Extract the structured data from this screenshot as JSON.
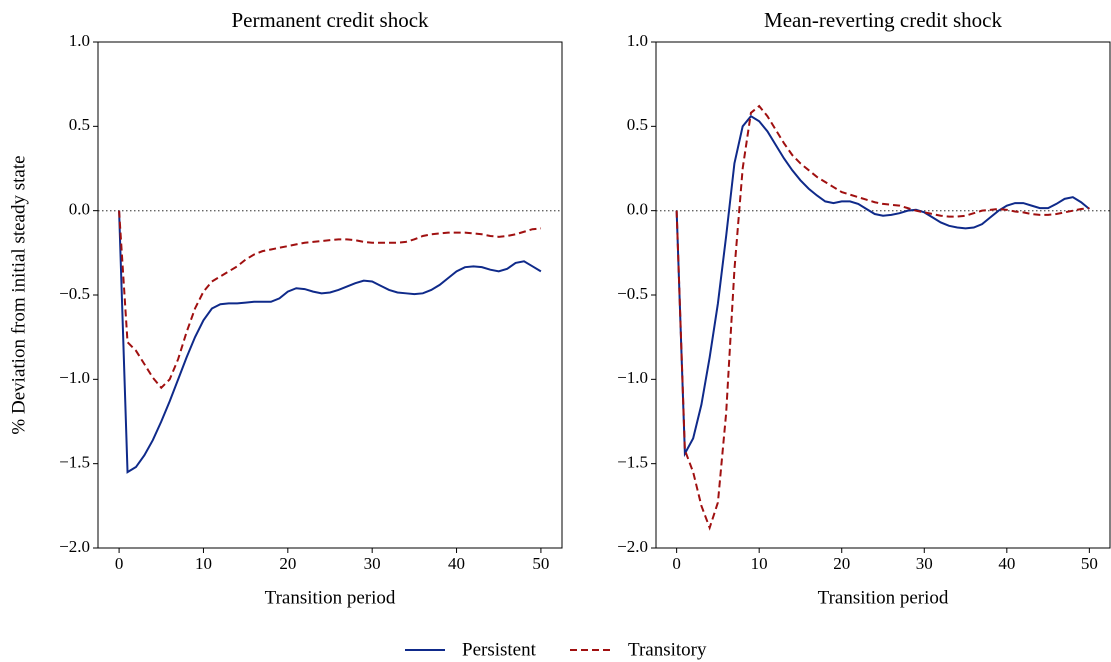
{
  "chart_data": [
    {
      "type": "line",
      "title": "Permanent credit shock",
      "xlabel": "Transition period",
      "ylabel": "% Deviation from initial steady state",
      "x": [
        0,
        1,
        2,
        3,
        4,
        5,
        6,
        7,
        8,
        9,
        10,
        11,
        12,
        13,
        14,
        15,
        16,
        17,
        18,
        19,
        20,
        21,
        22,
        23,
        24,
        25,
        26,
        27,
        28,
        29,
        30,
        31,
        32,
        33,
        34,
        35,
        36,
        37,
        38,
        39,
        40,
        41,
        42,
        43,
        44,
        45,
        46,
        47,
        48,
        49,
        50
      ],
      "series": [
        {
          "name": "Persistent",
          "color": "#0f2a8a",
          "dash": "solid",
          "values": [
            0,
            -1.55,
            -1.52,
            -1.45,
            -1.36,
            -1.25,
            -1.13,
            -1.0,
            -0.87,
            -0.75,
            -0.65,
            -0.58,
            -0.555,
            -0.55,
            -0.55,
            -0.545,
            -0.54,
            -0.54,
            -0.54,
            -0.52,
            -0.48,
            -0.46,
            -0.465,
            -0.48,
            -0.49,
            -0.485,
            -0.47,
            -0.45,
            -0.43,
            -0.415,
            -0.42,
            -0.445,
            -0.47,
            -0.485,
            -0.49,
            -0.495,
            -0.49,
            -0.47,
            -0.44,
            -0.4,
            -0.36,
            -0.335,
            -0.33,
            -0.335,
            -0.35,
            -0.36,
            -0.345,
            -0.31,
            -0.3,
            -0.33,
            -0.36
          ]
        },
        {
          "name": "Transitory",
          "color": "#a01010",
          "dash": "dashed",
          "values": [
            0,
            -0.78,
            -0.83,
            -0.91,
            -0.99,
            -1.05,
            -1.0,
            -0.88,
            -0.72,
            -0.58,
            -0.48,
            -0.42,
            -0.39,
            -0.36,
            -0.33,
            -0.29,
            -0.26,
            -0.24,
            -0.23,
            -0.22,
            -0.21,
            -0.2,
            -0.19,
            -0.185,
            -0.18,
            -0.175,
            -0.17,
            -0.17,
            -0.175,
            -0.185,
            -0.19,
            -0.19,
            -0.19,
            -0.19,
            -0.185,
            -0.17,
            -0.15,
            -0.14,
            -0.135,
            -0.13,
            -0.13,
            -0.13,
            -0.135,
            -0.14,
            -0.15,
            -0.155,
            -0.15,
            -0.14,
            -0.125,
            -0.11,
            -0.105
          ]
        }
      ],
      "hline": 0,
      "xlim": [
        -2.5,
        52.5
      ],
      "xticks": [
        0,
        10,
        20,
        30,
        40,
        50
      ],
      "ylim": [
        -2.0,
        1.0
      ],
      "yticks": [
        {
          "value": -2.0,
          "label": "−2.0"
        },
        {
          "value": -1.5,
          "label": "−1.5"
        },
        {
          "value": -1.0,
          "label": "−1.0"
        },
        {
          "value": -0.5,
          "label": "−0.5"
        },
        {
          "value": 0.0,
          "label": "0.0"
        },
        {
          "value": 0.5,
          "label": "0.5"
        },
        {
          "value": 1.0,
          "label": "1.0"
        }
      ]
    },
    {
      "type": "line",
      "title": "Mean-reverting credit shock",
      "xlabel": "Transition period",
      "x": [
        0,
        1,
        2,
        3,
        4,
        5,
        6,
        7,
        8,
        9,
        10,
        11,
        12,
        13,
        14,
        15,
        16,
        17,
        18,
        19,
        20,
        21,
        22,
        23,
        24,
        25,
        26,
        27,
        28,
        29,
        30,
        31,
        32,
        33,
        34,
        35,
        36,
        37,
        38,
        39,
        40,
        41,
        42,
        43,
        44,
        45,
        46,
        47,
        48,
        49,
        50
      ],
      "series": [
        {
          "color": "#0f2a8a",
          "dash": "solid",
          "values": [
            0,
            -1.44,
            -1.35,
            -1.15,
            -0.87,
            -0.55,
            -0.15,
            0.28,
            0.5,
            0.56,
            0.53,
            0.47,
            0.39,
            0.31,
            0.24,
            0.18,
            0.13,
            0.09,
            0.055,
            0.045,
            0.055,
            0.055,
            0.04,
            0.01,
            -0.02,
            -0.03,
            -0.025,
            -0.015,
            0.0,
            0.005,
            -0.01,
            -0.04,
            -0.07,
            -0.09,
            -0.1,
            -0.105,
            -0.1,
            -0.08,
            -0.04,
            0.0,
            0.03,
            0.045,
            0.045,
            0.03,
            0.015,
            0.015,
            0.04,
            0.07,
            0.08,
            0.05,
            0.01
          ]
        },
        {
          "color": "#a01010",
          "dash": "dashed",
          "values": [
            0,
            -1.42,
            -1.55,
            -1.75,
            -1.88,
            -1.73,
            -1.2,
            -0.35,
            0.25,
            0.58,
            0.62,
            0.56,
            0.48,
            0.4,
            0.33,
            0.28,
            0.24,
            0.2,
            0.17,
            0.14,
            0.11,
            0.095,
            0.08,
            0.065,
            0.05,
            0.04,
            0.035,
            0.03,
            0.015,
            0.0,
            -0.01,
            -0.02,
            -0.03,
            -0.035,
            -0.035,
            -0.03,
            -0.015,
            0.0,
            0.005,
            0.01,
            0.005,
            -0.005,
            -0.01,
            -0.02,
            -0.025,
            -0.025,
            -0.02,
            -0.01,
            0.0,
            0.01,
            0.015
          ]
        }
      ],
      "hline": 0,
      "xlim": [
        -2.5,
        52.5
      ],
      "xticks": [
        0,
        10,
        20,
        30,
        40,
        50
      ],
      "ylim": [
        -2.0,
        1.0
      ],
      "yticks": [
        {
          "value": -2.0,
          "label": "−2.0"
        },
        {
          "value": -1.5,
          "label": "−1.5"
        },
        {
          "value": -1.0,
          "label": "−1.0"
        },
        {
          "value": -0.5,
          "label": "−0.5"
        },
        {
          "value": 0.0,
          "label": "0.0"
        },
        {
          "value": 0.5,
          "label": "0.5"
        },
        {
          "value": 1.0,
          "label": "1.0"
        }
      ]
    }
  ]
}
